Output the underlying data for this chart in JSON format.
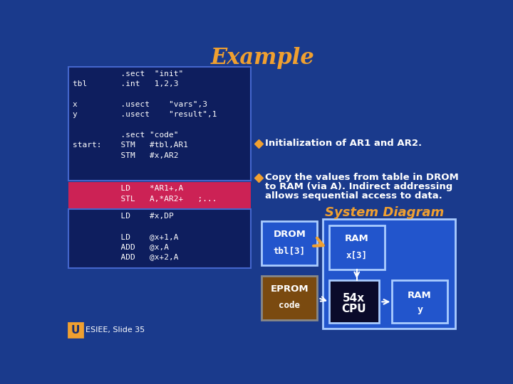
{
  "bg_color": "#1a3a8c",
  "title": "Example",
  "title_color": "#f0a030",
  "title_fontsize": 22,
  "code_box1_color": "#0e1e5e",
  "code_box2_color": "#cc2255",
  "code_box3_color": "#0e1e5e",
  "code_text_color": "#ffffff",
  "code_lines1": [
    "          .sect  \"init\"",
    "tbl       .int   1,2,3",
    "",
    "x         .usect    \"vars\",3",
    "y         .usect    \"result\",1",
    "",
    "          .sect \"code\"",
    "start:    STM   #tbl,AR1",
    "          STM   #x,AR2"
  ],
  "code_lines2": [
    "          LD    *AR1+,A",
    "          STL   A,*AR2+   ;..."
  ],
  "code_lines3": [
    "          LD    #x,DP",
    "",
    "          LD    @x+1,A",
    "          ADD   @x,A",
    "          ADD   @x+2,A"
  ],
  "bullet1": "Initialization of AR1 and AR2.",
  "bullet2_line1": "Copy the values from table in DROM",
  "bullet2_line2": "to RAM (via A). Indirect addressing",
  "bullet2_line3": "allows sequential access to data.",
  "system_diagram_label": "System Diagram",
  "system_diagram_color": "#f0a030",
  "outer_box_color": "#2255cc",
  "drom_box_color": "#2255cc",
  "drom_label1": "DROM",
  "drom_label2": "tbl[3]",
  "ram1_box_color": "#2255cc",
  "ram1_label1": "RAM",
  "ram1_label2": "x[3]",
  "eprom_box_color": "#7a4a10",
  "eprom_label1": "EPROM",
  "eprom_label2": "code",
  "cpu_box_color": "#0a0a2a",
  "cpu_label1": "54x",
  "cpu_label2": "CPU",
  "ram2_box_color": "#2255cc",
  "ram2_label1": "RAM",
  "ram2_label2": "y",
  "arrow_color": "#f0a030",
  "line_color": "#ffffff",
  "bullet_diamond_color": "#f0a030",
  "text_color": "#ffffff",
  "esiee_text": "ESIEE, Slide 35"
}
